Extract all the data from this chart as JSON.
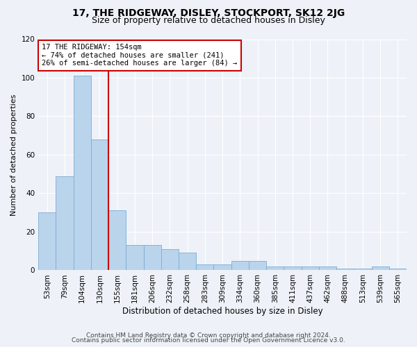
{
  "title1": "17, THE RIDGEWAY, DISLEY, STOCKPORT, SK12 2JG",
  "title2": "Size of property relative to detached houses in Disley",
  "xlabel": "Distribution of detached houses by size in Disley",
  "ylabel": "Number of detached properties",
  "categories": [
    "53sqm",
    "79sqm",
    "104sqm",
    "130sqm",
    "155sqm",
    "181sqm",
    "206sqm",
    "232sqm",
    "258sqm",
    "283sqm",
    "309sqm",
    "334sqm",
    "360sqm",
    "385sqm",
    "411sqm",
    "437sqm",
    "462sqm",
    "488sqm",
    "513sqm",
    "539sqm",
    "565sqm"
  ],
  "values": [
    30,
    49,
    101,
    68,
    31,
    13,
    13,
    11,
    9,
    3,
    3,
    5,
    5,
    2,
    2,
    2,
    2,
    1,
    1,
    2,
    1
  ],
  "bar_color": "#bad4ec",
  "bar_edge_color": "#7aadd4",
  "red_line_x": 4,
  "ylim": [
    0,
    120
  ],
  "yticks": [
    0,
    20,
    40,
    60,
    80,
    100,
    120
  ],
  "annotation_line1": "17 THE RIDGEWAY: 154sqm",
  "annotation_line2": "← 74% of detached houses are smaller (241)",
  "annotation_line3": "26% of semi-detached houses are larger (84) →",
  "annotation_box_color": "#ffffff",
  "annotation_box_edge": "#cc0000",
  "footer1": "Contains HM Land Registry data © Crown copyright and database right 2024.",
  "footer2": "Contains public sector information licensed under the Open Government Licence v3.0.",
  "bg_color": "#eef2f8",
  "grid_color": "#ffffff",
  "title1_fontsize": 10,
  "title2_fontsize": 9,
  "xlabel_fontsize": 8.5,
  "ylabel_fontsize": 8,
  "tick_fontsize": 7.5,
  "annotation_fontsize": 7.5,
  "footer_fontsize": 6.5
}
